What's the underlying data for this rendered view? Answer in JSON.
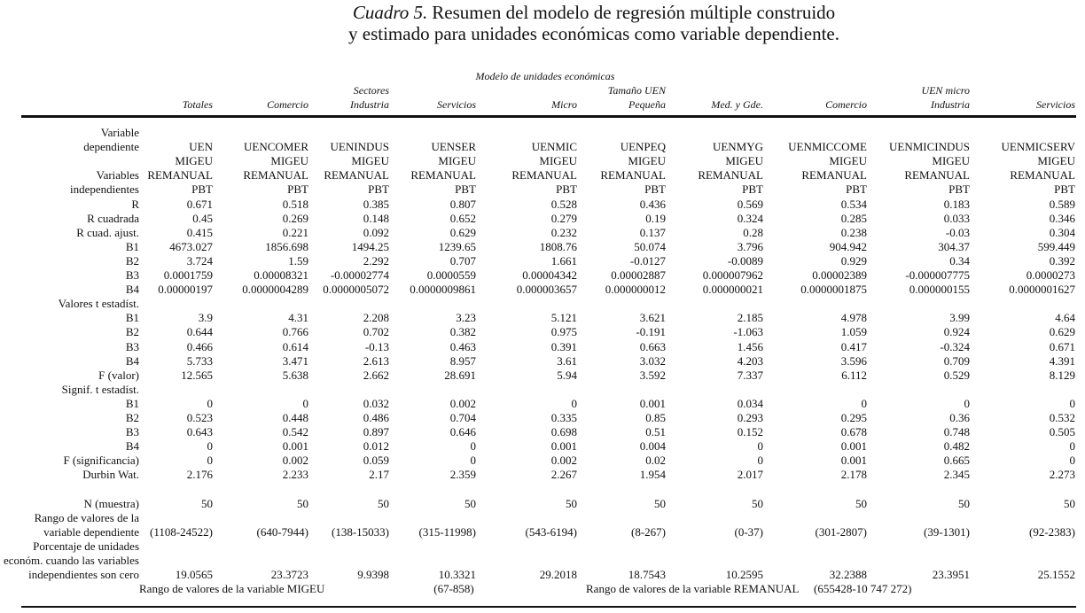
{
  "title": {
    "label": "Cuadro 5.",
    "line1": "Resumen del modelo de regresión múltiple construido",
    "line2": "y estimado para unidades económicas como variable dependiente."
  },
  "table": {
    "group_header": "Modelo de unidades económicas",
    "columns": [
      [
        "Totales"
      ],
      [
        "Comercio"
      ],
      [
        "Sectores",
        "Industria"
      ],
      [
        "Servicios"
      ],
      [
        "Micro"
      ],
      [
        "Tamaño UEN",
        "Pequeña"
      ],
      [
        "Med. y Gde."
      ],
      [
        "Comercio"
      ],
      [
        "UEN micro",
        "Industria"
      ],
      [
        "Servicios"
      ]
    ],
    "rows": [
      {
        "label": [
          "Variable",
          "dependiente"
        ],
        "values": [
          "UEN",
          "UENCOMER",
          "UENINDUS",
          "UENSER",
          "UENMIC",
          "UENPEQ",
          "UENMYG",
          "UENMICCOME",
          "UENMICINDUS",
          "UENMICSERV"
        ]
      },
      {
        "values": [
          "MIGEU",
          "MIGEU",
          "MIGEU",
          "MIGEU",
          "MIGEU",
          "MIGEU",
          "MIGEU",
          "MIGEU",
          "MIGEU",
          "MIGEU"
        ]
      },
      {
        "label": [
          "Variables"
        ],
        "values": [
          "REMANUAL",
          "REMANUAL",
          "REMANUAL",
          "REMANUAL",
          "REMANUAL",
          "REMANUAL",
          "REMANUAL",
          "REMANUAL",
          "REMANUAL",
          "REMANUAL"
        ]
      },
      {
        "label": [
          "independientes"
        ],
        "values": [
          "PBT",
          "PBT",
          "PBT",
          "PBT",
          "PBT",
          "PBT",
          "PBT",
          "PBT",
          "PBT",
          "PBT"
        ]
      },
      {
        "label": [
          "R"
        ],
        "values": [
          "0.671",
          "0.518",
          "0.385",
          "0.807",
          "0.528",
          "0.436",
          "0.569",
          "0.534",
          "0.183",
          "0.589"
        ]
      },
      {
        "label": [
          "R cuadrada"
        ],
        "values": [
          "0.45",
          "0.269",
          "0.148",
          "0.652",
          "0.279",
          "0.19",
          "0.324",
          "0.285",
          "0.033",
          "0.346"
        ]
      },
      {
        "label": [
          "R cuad. ajust."
        ],
        "values": [
          "0.415",
          "0.221",
          "0.092",
          "0.629",
          "0.232",
          "0.137",
          "0.28",
          "0.238",
          "-0.03",
          "0.304"
        ]
      },
      {
        "label": [
          "B1"
        ],
        "values": [
          "4673.027",
          "1856.698",
          "1494.25",
          "1239.65",
          "1808.76",
          "50.074",
          "3.796",
          "904.942",
          "304.37",
          "599.449"
        ]
      },
      {
        "label": [
          "B2"
        ],
        "values": [
          "3.724",
          "1.59",
          "2.292",
          "0.707",
          "1.661",
          "-0.0127",
          "-0.0089",
          "0.929",
          "0.34",
          "0.392"
        ]
      },
      {
        "label": [
          "B3"
        ],
        "values": [
          "0.0001759",
          "0.00008321",
          "-0.00002774",
          "0.0000559",
          "0.00004342",
          "0.00002887",
          "0.000007962",
          "0.00002389",
          "-0.000007775",
          "0.0000273"
        ]
      },
      {
        "label": [
          "B4"
        ],
        "values": [
          "0.00000197",
          "0.0000004289",
          "0.0000005072",
          "0.0000009861",
          "0.000003657",
          "0.000000012",
          "0.000000021",
          "0.0000001875",
          "0.000000155",
          "0.0000001627"
        ]
      },
      {
        "section": "Valores t estadíst."
      },
      {
        "label": [
          "B1"
        ],
        "values": [
          "3.9",
          "4.31",
          "2.208",
          "3.23",
          "5.121",
          "3.621",
          "2.185",
          "4.978",
          "3.99",
          "4.64"
        ]
      },
      {
        "label": [
          "B2"
        ],
        "values": [
          "0.644",
          "0.766",
          "0.702",
          "0.382",
          "0.975",
          "-0.191",
          "-1.063",
          "1.059",
          "0.924",
          "0.629"
        ]
      },
      {
        "label": [
          "B3"
        ],
        "values": [
          "0.466",
          "0.614",
          "-0.13",
          "0.463",
          "0.391",
          "0.663",
          "1.456",
          "0.417",
          "-0.324",
          "0.671"
        ]
      },
      {
        "label": [
          "B4"
        ],
        "values": [
          "5.733",
          "3.471",
          "2.613",
          "8.957",
          "3.61",
          "3.032",
          "4.203",
          "3.596",
          "0.709",
          "4.391"
        ]
      },
      {
        "label": [
          "F (valor)"
        ],
        "values": [
          "12.565",
          "5.638",
          "2.662",
          "28.691",
          "5.94",
          "3.592",
          "7.337",
          "6.112",
          "0.529",
          "8.129"
        ]
      },
      {
        "section": "Signif. t estadíst."
      },
      {
        "label": [
          "B1"
        ],
        "values": [
          "0",
          "0",
          "0.032",
          "0.002",
          "0",
          "0.001",
          "0.034",
          "0",
          "0",
          "0"
        ]
      },
      {
        "label": [
          "B2"
        ],
        "values": [
          "0.523",
          "0.448",
          "0.486",
          "0.704",
          "0.335",
          "0.85",
          "0.293",
          "0.295",
          "0.36",
          "0.532"
        ]
      },
      {
        "label": [
          "B3"
        ],
        "values": [
          "0.643",
          "0.542",
          "0.897",
          "0.646",
          "0.698",
          "0.51",
          "0.152",
          "0.678",
          "0.748",
          "0.505"
        ]
      },
      {
        "label": [
          "B4"
        ],
        "values": [
          "0",
          "0.001",
          "0.012",
          "0",
          "0.001",
          "0.004",
          "0",
          "0.001",
          "0.482",
          "0"
        ]
      },
      {
        "label": [
          "F (significancia)"
        ],
        "values": [
          "0",
          "0.002",
          "0.059",
          "0",
          "0.002",
          "0.02",
          "0",
          "0.001",
          "0.665",
          "0"
        ]
      },
      {
        "label": [
          "Durbin Wat."
        ],
        "values": [
          "2.176",
          "2.233",
          "2.17",
          "2.359",
          "2.267",
          "1.954",
          "2.017",
          "2.178",
          "2.345",
          "2.273"
        ]
      },
      {
        "label": [
          "N (muestra)"
        ],
        "values": [
          "50",
          "50",
          "50",
          "50",
          "50",
          "50",
          "50",
          "50",
          "50",
          "50"
        ]
      },
      {
        "label": [
          "Rango de valores de la",
          "variable dependiente"
        ],
        "values": [
          "(1108-24522)",
          "(640-7944)",
          "(138-15033)",
          "(315-11998)",
          "(543-6194)",
          "(8-267)",
          "(0-37)",
          "(301-2807)",
          "(39-1301)",
          "(92-2383)"
        ]
      },
      {
        "label": [
          "Porcentaje de unidades",
          "económ. cuando las variables",
          "independientes son cero"
        ],
        "values": [
          "19.0565",
          "23.3723",
          "9.9398",
          "10.3321",
          "29.2018",
          "18.7543",
          "10.2595",
          "32.2388",
          "23.3951",
          "25.1552"
        ]
      }
    ],
    "footer": [
      "Rango de valores de la variable MIGEU",
      "(67-858)",
      "Rango de valores de la variable REMANUAL",
      "(655428-10 747 272)"
    ]
  }
}
